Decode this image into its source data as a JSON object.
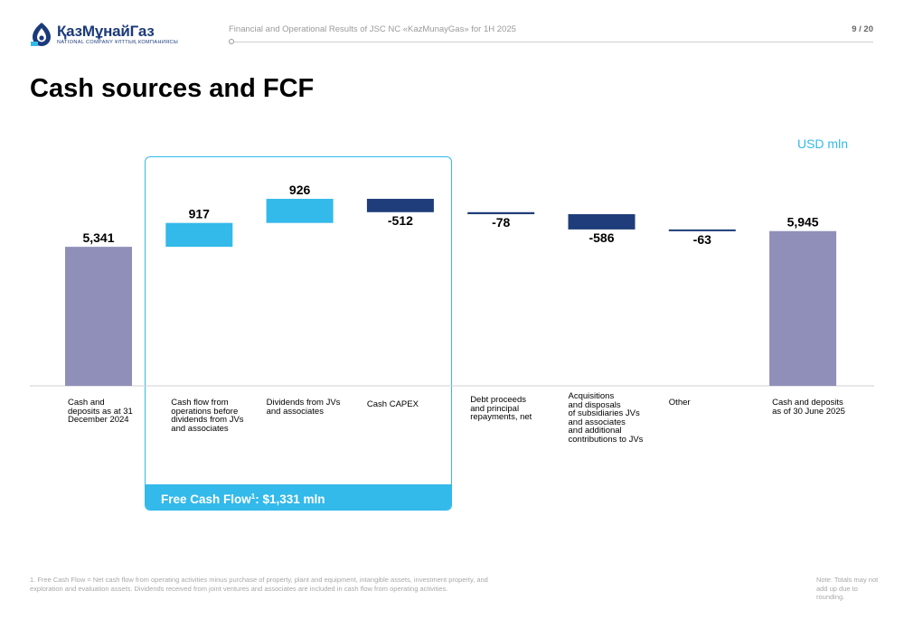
{
  "header": {
    "logo_name": "ҚазМұнайГаз",
    "logo_sub": "NATIONAL COMPANY ҰЛТТЫҚ КОМПАНИЯСЫ",
    "doc_title": "Financial and Operational Results of JSC NC «KazMunayGas» for 1H 2025",
    "page_number": "9 / 20"
  },
  "title": "Cash sources and FCF",
  "unit": "USD mln",
  "fcf": {
    "label": "Free Cash Flow",
    "sup": "1",
    "value": ": $1,331 mln"
  },
  "colors": {
    "total": "#8f8fba",
    "increase": "#33b9ea",
    "decrease": "#1f3d7a",
    "accent": "#33b9ea"
  },
  "chart_data": {
    "type": "waterfall",
    "categories": [
      "Cash and\ndeposits as at 31\nDecember 2024",
      "Cash flow from\noperations before\ndividends from JVs\nand associates",
      "Dividends from JVs\nand associates",
      "Cash CAPEX",
      "Debt proceeds\nand principal\nrepayments, net",
      "Acquisitions\nand disposals\nof subsidiaries JVs\nand associates\nand additional\ncontributions to JVs",
      "Other",
      "Cash and deposits\nas of 30 June 2025"
    ],
    "values": [
      5341,
      917,
      926,
      -512,
      -78,
      -586,
      -63,
      5945
    ],
    "labels": [
      "5,341",
      "917",
      "926",
      "-512",
      "-78",
      "-586",
      "-63",
      "5,945"
    ],
    "kinds": [
      "total",
      "increase",
      "increase",
      "decrease",
      "decrease",
      "decrease",
      "decrease",
      "total"
    ]
  },
  "footnote": "1. Free Cash Flow = Net cash flow from operating activities minus purchase of property, plant and equipment, intangible assets, investment property, and exploration and evaluation assets. Dividends received from joint ventures and associates are included in cash flow from operating activities.",
  "note": "Note: Totals may not add up due to rounding."
}
